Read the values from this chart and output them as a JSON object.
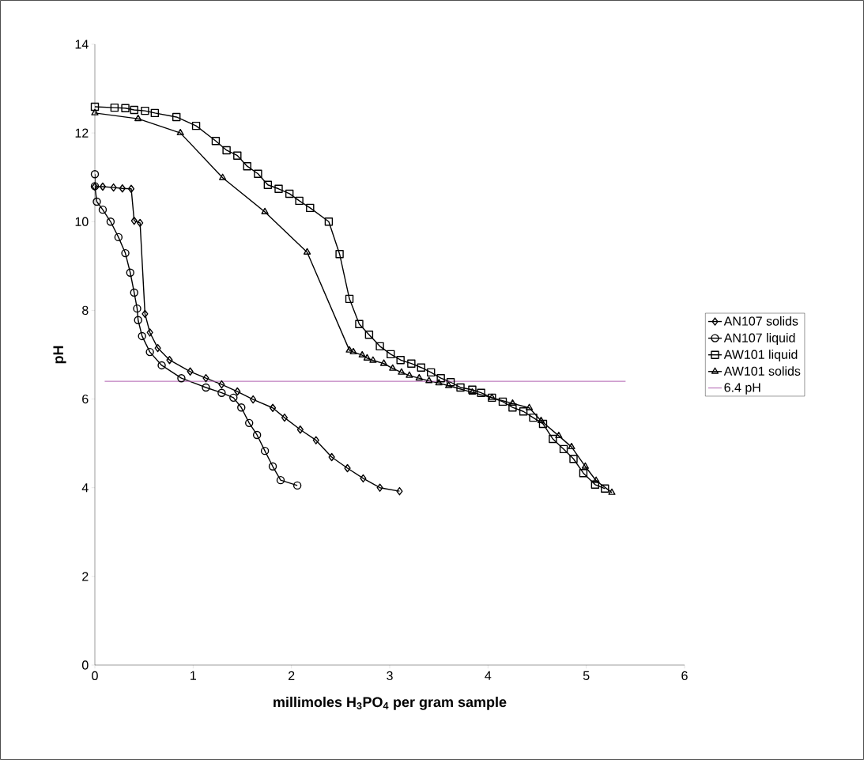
{
  "chart_data": {
    "type": "line",
    "xlabel": "millimoles H$_{3}$PO$_{4}$ per gram sample",
    "ylabel": "pH",
    "xlim": [
      0,
      6
    ],
    "ylim": [
      0,
      14
    ],
    "xticks": [
      0,
      1,
      2,
      3,
      4,
      5,
      6
    ],
    "yticks": [
      0,
      2,
      4,
      6,
      8,
      10,
      12,
      14
    ],
    "grid": false,
    "legend": "right",
    "series": [
      {
        "name": "AN107 solids",
        "color": "#000000",
        "marker": "diamond",
        "x": [
          0,
          0.08,
          0.19,
          0.28,
          0.37,
          0.4,
          0.46,
          0.51,
          0.56,
          0.64,
          0.76,
          0.97,
          1.13,
          1.29,
          1.45,
          1.61,
          1.81,
          1.93,
          2.09,
          2.25,
          2.41,
          2.57,
          2.73,
          2.9,
          3.1
        ],
        "values": [
          10.79,
          10.79,
          10.77,
          10.75,
          10.74,
          10.02,
          9.97,
          7.92,
          7.5,
          7.15,
          6.88,
          6.62,
          6.47,
          6.33,
          6.17,
          5.99,
          5.8,
          5.58,
          5.31,
          5.07,
          4.69,
          4.44,
          4.21,
          4.0,
          3.92
        ]
      },
      {
        "name": "AN107 liquid",
        "color": "#000000",
        "marker": "circle",
        "x": [
          0,
          0,
          0.02,
          0.08,
          0.16,
          0.24,
          0.31,
          0.36,
          0.4,
          0.43,
          0.44,
          0.48,
          0.56,
          0.68,
          0.88,
          1.13,
          1.29,
          1.41,
          1.49,
          1.57,
          1.65,
          1.73,
          1.81,
          1.89,
          2.06
        ],
        "values": [
          11.07,
          10.8,
          10.45,
          10.27,
          10.0,
          9.65,
          9.29,
          8.85,
          8.4,
          8.04,
          7.78,
          7.42,
          7.06,
          6.76,
          6.47,
          6.26,
          6.14,
          6.03,
          5.81,
          5.46,
          5.19,
          4.83,
          4.48,
          4.17,
          4.05
        ]
      },
      {
        "name": "AW101 liquid",
        "color": "#000000",
        "marker": "square",
        "x": [
          0,
          0.2,
          0.31,
          0.4,
          0.51,
          0.61,
          0.83,
          1.03,
          1.23,
          1.34,
          1.45,
          1.55,
          1.66,
          1.76,
          1.87,
          1.98,
          2.08,
          2.19,
          2.38,
          2.49,
          2.59,
          2.69,
          2.79,
          2.9,
          3.01,
          3.11,
          3.22,
          3.32,
          3.42,
          3.52,
          3.62,
          3.72,
          3.84,
          3.93,
          4.04,
          4.15,
          4.25,
          4.36,
          4.46,
          4.56,
          4.66,
          4.77,
          4.87,
          4.97,
          5.09,
          5.19
        ],
        "values": [
          12.59,
          12.57,
          12.56,
          12.52,
          12.5,
          12.45,
          12.36,
          12.16,
          11.82,
          11.61,
          11.49,
          11.25,
          11.08,
          10.83,
          10.74,
          10.63,
          10.47,
          10.31,
          10.0,
          9.27,
          8.26,
          7.69,
          7.45,
          7.19,
          7.01,
          6.88,
          6.8,
          6.71,
          6.6,
          6.47,
          6.38,
          6.26,
          6.21,
          6.14,
          6.03,
          5.94,
          5.81,
          5.72,
          5.58,
          5.44,
          5.1,
          4.87,
          4.65,
          4.33,
          4.07,
          3.98
        ]
      },
      {
        "name": "AW101 solids",
        "color": "#000000",
        "marker": "triangle",
        "x": [
          0,
          0.44,
          0.87,
          1.3,
          1.73,
          2.16,
          2.59,
          2.63,
          2.72,
          2.77,
          2.83,
          2.94,
          3.03,
          3.12,
          3.2,
          3.3,
          3.4,
          3.5,
          3.6,
          3.84,
          4.04,
          4.25,
          4.42,
          4.54,
          4.72,
          4.85,
          4.99,
          5.1,
          5.26
        ],
        "values": [
          12.45,
          12.32,
          12.0,
          10.99,
          10.22,
          9.31,
          7.1,
          7.06,
          6.99,
          6.92,
          6.87,
          6.8,
          6.69,
          6.6,
          6.53,
          6.47,
          6.41,
          6.36,
          6.3,
          6.15,
          6.03,
          5.9,
          5.8,
          5.51,
          5.17,
          4.92,
          4.48,
          4.16,
          3.89
        ]
      },
      {
        "name": "6.4 pH",
        "color": "#b060b0",
        "marker": "none",
        "x": [
          0.1,
          5.4
        ],
        "values": [
          6.4,
          6.4
        ]
      }
    ]
  }
}
